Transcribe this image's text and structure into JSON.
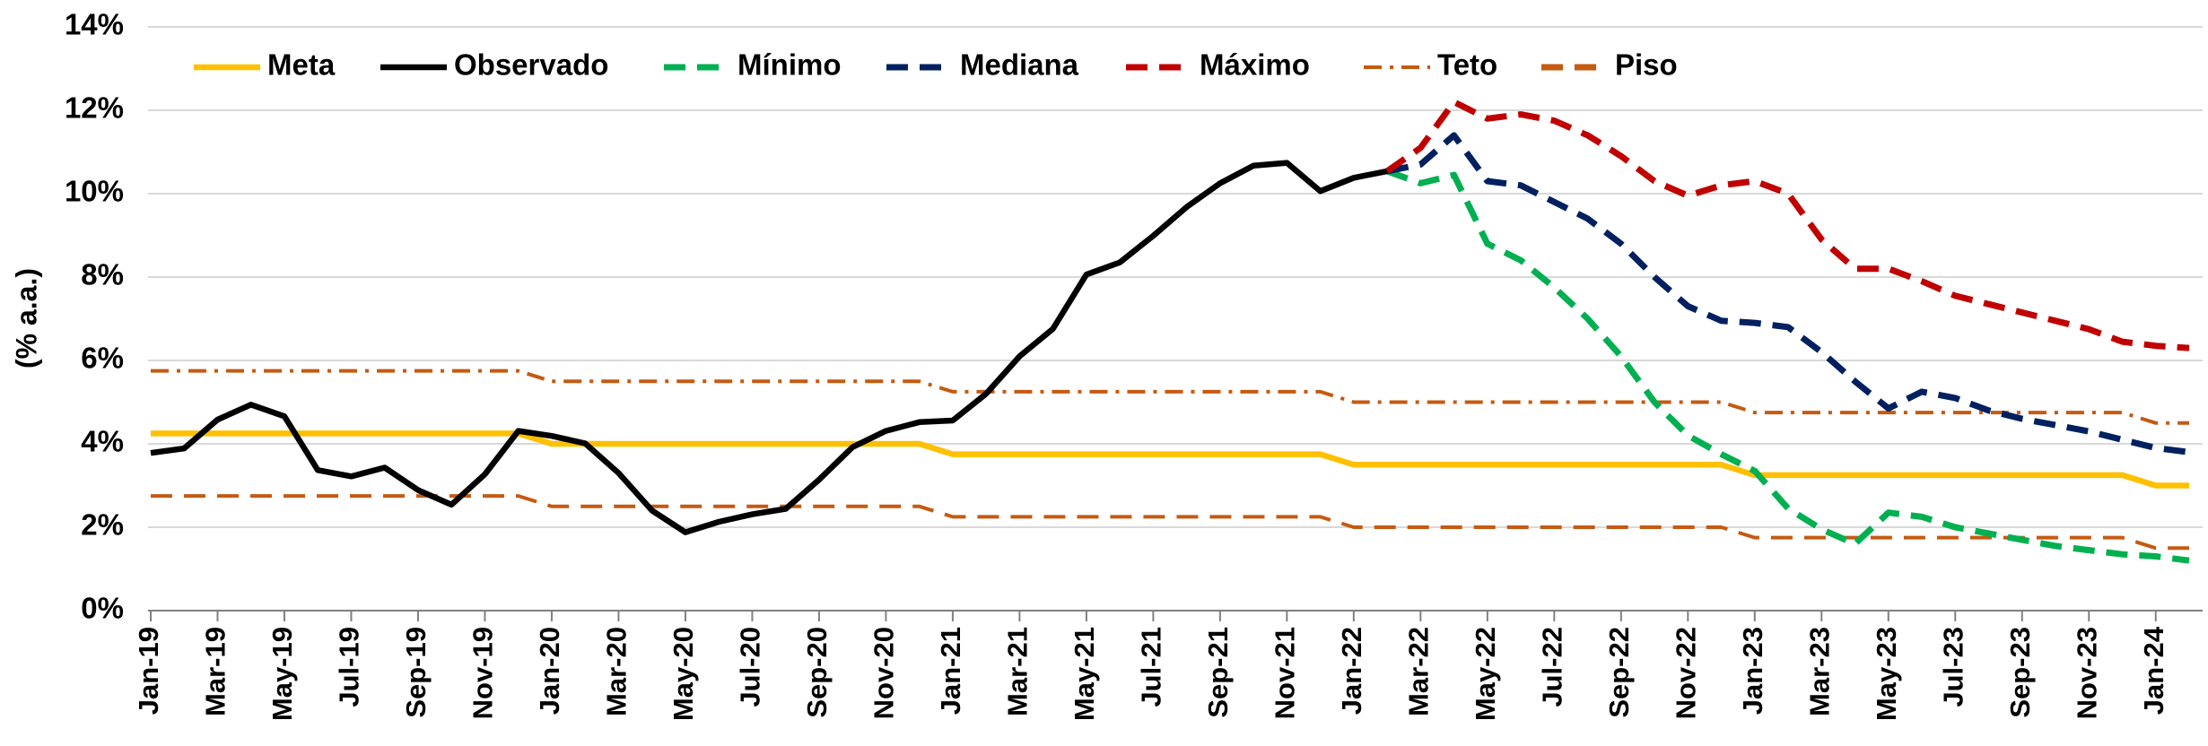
{
  "chart_data": {
    "type": "line",
    "y_label": "(% a.a.)",
    "categories": [
      "Jan-19",
      null,
      "Mar-19",
      null,
      "May-19",
      null,
      "Jul-19",
      null,
      "Sep-19",
      null,
      "Nov-19",
      null,
      "Jan-20",
      null,
      "Mar-20",
      null,
      "May-20",
      null,
      "Jul-20",
      null,
      "Sep-20",
      null,
      "Nov-20",
      null,
      "Jan-21",
      null,
      "Mar-21",
      null,
      "May-21",
      null,
      "Jul-21",
      null,
      "Sep-21",
      null,
      "Nov-21",
      null,
      "Jan-22",
      null,
      "Mar-22",
      null,
      "May-22",
      null,
      "Jul-22",
      null,
      "Sep-22",
      null,
      "Nov-22",
      null,
      "Jan-23",
      null,
      "Mar-23",
      null,
      "May-23",
      null,
      "Jul-23",
      null,
      "Sep-23",
      null,
      "Nov-23",
      null,
      "Jan-24",
      null
    ],
    "ylim": [
      0,
      14
    ],
    "yticks": [
      {
        "value": 0,
        "label": "0%"
      },
      {
        "value": 2,
        "label": "2%"
      },
      {
        "value": 4,
        "label": "4%"
      },
      {
        "value": 6,
        "label": "6%"
      },
      {
        "value": 8,
        "label": "8%"
      },
      {
        "value": 10,
        "label": "10%"
      },
      {
        "value": 12,
        "label": "12%"
      },
      {
        "value": 14,
        "label": "14%"
      }
    ],
    "grid": true,
    "legend": "top-left",
    "series": [
      {
        "name": "Meta",
        "color": "#ffc000",
        "dash": "solid",
        "values": [
          4.25,
          4.25,
          4.25,
          4.25,
          4.25,
          4.25,
          4.25,
          4.25,
          4.25,
          4.25,
          4.25,
          4.25,
          4,
          4,
          4,
          4,
          4,
          4,
          4,
          4,
          4,
          4,
          4,
          4,
          3.75,
          3.75,
          3.75,
          3.75,
          3.75,
          3.75,
          3.75,
          3.75,
          3.75,
          3.75,
          3.75,
          3.75,
          3.5,
          3.5,
          3.5,
          3.5,
          3.5,
          3.5,
          3.5,
          3.5,
          3.5,
          3.5,
          3.5,
          3.5,
          3.25,
          3.25,
          3.25,
          3.25,
          3.25,
          3.25,
          3.25,
          3.25,
          3.25,
          3.25,
          3.25,
          3.25,
          3,
          3
        ]
      },
      {
        "name": "Observado",
        "color": "#000000",
        "dash": "solid",
        "values": [
          3.78,
          3.89,
          4.58,
          4.94,
          4.66,
          3.37,
          3.22,
          3.43,
          2.89,
          2.54,
          3.27,
          4.31,
          4.19,
          4.01,
          3.3,
          2.4,
          1.88,
          2.13,
          2.31,
          2.44,
          3.14,
          3.92,
          4.31,
          4.52,
          4.56,
          5.2,
          6.1,
          6.76,
          8.06,
          8.35,
          8.99,
          9.68,
          10.25,
          10.67,
          10.74,
          10.06,
          10.38,
          10.54,
          null,
          null,
          null,
          null,
          null,
          null,
          null,
          null,
          null,
          null,
          null,
          null,
          null,
          null,
          null,
          null,
          null,
          null,
          null,
          null,
          null,
          null,
          null,
          null
        ]
      },
      {
        "name": "Mínimo",
        "color": "#00b050",
        "dash": "dash",
        "values": [
          null,
          null,
          null,
          null,
          null,
          null,
          null,
          null,
          null,
          null,
          null,
          null,
          null,
          null,
          null,
          null,
          null,
          null,
          null,
          null,
          null,
          null,
          null,
          null,
          null,
          null,
          null,
          null,
          null,
          null,
          null,
          null,
          null,
          null,
          null,
          null,
          null,
          10.54,
          10.25,
          10.45,
          8.8,
          8.4,
          7.75,
          7,
          6.1,
          5,
          4.2,
          3.75,
          3.35,
          2.45,
          1.95,
          1.6,
          2.35,
          2.25,
          2,
          1.85,
          1.7,
          1.55,
          1.45,
          1.35,
          1.3,
          1.2
        ]
      },
      {
        "name": "Mediana",
        "color": "#002060",
        "dash": "dash",
        "values": [
          null,
          null,
          null,
          null,
          null,
          null,
          null,
          null,
          null,
          null,
          null,
          null,
          null,
          null,
          null,
          null,
          null,
          null,
          null,
          null,
          null,
          null,
          null,
          null,
          null,
          null,
          null,
          null,
          null,
          null,
          null,
          null,
          null,
          null,
          null,
          null,
          null,
          10.54,
          10.7,
          11.4,
          10.3,
          10.2,
          9.8,
          9.4,
          8.8,
          8,
          7.3,
          6.95,
          6.9,
          6.8,
          6.2,
          5.5,
          4.85,
          5.25,
          5.1,
          4.8,
          4.6,
          4.45,
          4.3,
          4.1,
          3.9,
          3.8
        ]
      },
      {
        "name": "Máximo",
        "color": "#c00000",
        "dash": "dash",
        "values": [
          null,
          null,
          null,
          null,
          null,
          null,
          null,
          null,
          null,
          null,
          null,
          null,
          null,
          null,
          null,
          null,
          null,
          null,
          null,
          null,
          null,
          null,
          null,
          null,
          null,
          null,
          null,
          null,
          null,
          null,
          null,
          null,
          null,
          null,
          null,
          null,
          null,
          10.54,
          11.1,
          12.2,
          11.8,
          11.9,
          11.75,
          11.4,
          10.9,
          10.3,
          9.95,
          10.2,
          10.3,
          10,
          8.9,
          8.2,
          8.2,
          7.9,
          7.55,
          7.35,
          7.15,
          6.95,
          6.75,
          6.45,
          6.35,
          6.3
        ]
      },
      {
        "name": "Teto",
        "color": "#c55a11",
        "dash": "dashdot",
        "values": [
          5.75,
          5.75,
          5.75,
          5.75,
          5.75,
          5.75,
          5.75,
          5.75,
          5.75,
          5.75,
          5.75,
          5.75,
          5.5,
          5.5,
          5.5,
          5.5,
          5.5,
          5.5,
          5.5,
          5.5,
          5.5,
          5.5,
          5.5,
          5.5,
          5.25,
          5.25,
          5.25,
          5.25,
          5.25,
          5.25,
          5.25,
          5.25,
          5.25,
          5.25,
          5.25,
          5.25,
          5,
          5,
          5,
          5,
          5,
          5,
          5,
          5,
          5,
          5,
          5,
          5,
          4.75,
          4.75,
          4.75,
          4.75,
          4.75,
          4.75,
          4.75,
          4.75,
          4.75,
          4.75,
          4.75,
          4.75,
          4.5,
          4.5
        ]
      },
      {
        "name": "Piso",
        "color": "#c55a11",
        "dash": "dash",
        "values": [
          2.75,
          2.75,
          2.75,
          2.75,
          2.75,
          2.75,
          2.75,
          2.75,
          2.75,
          2.75,
          2.75,
          2.75,
          2.5,
          2.5,
          2.5,
          2.5,
          2.5,
          2.5,
          2.5,
          2.5,
          2.5,
          2.5,
          2.5,
          2.5,
          2.25,
          2.25,
          2.25,
          2.25,
          2.25,
          2.25,
          2.25,
          2.25,
          2.25,
          2.25,
          2.25,
          2.25,
          2,
          2,
          2,
          2,
          2,
          2,
          2,
          2,
          2,
          2,
          2,
          2,
          1.75,
          1.75,
          1.75,
          1.75,
          1.75,
          1.75,
          1.75,
          1.75,
          1.75,
          1.75,
          1.75,
          1.75,
          1.5,
          1.5
        ]
      }
    ]
  }
}
